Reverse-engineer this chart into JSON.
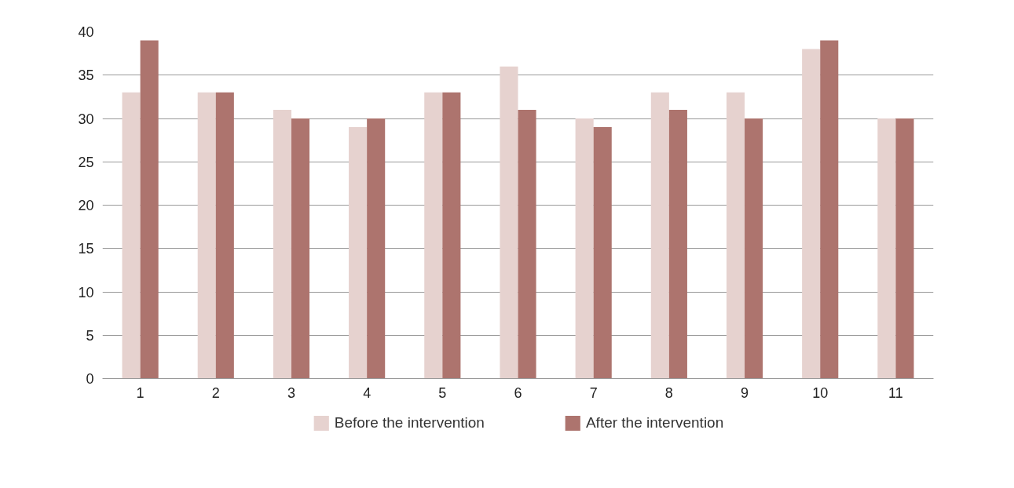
{
  "chart_data": {
    "type": "bar",
    "categories": [
      "1",
      "2",
      "3",
      "4",
      "5",
      "6",
      "7",
      "8",
      "9",
      "10",
      "11"
    ],
    "series": [
      {
        "name": "Before the intervention",
        "color": "#e6d2cf",
        "values": [
          33,
          33,
          31,
          29,
          33,
          36,
          30,
          33,
          33,
          38,
          30
        ]
      },
      {
        "name": "After the intervention",
        "color": "#ad746e",
        "values": [
          39,
          33,
          30,
          30,
          33,
          31,
          29,
          31,
          30,
          39,
          30
        ]
      }
    ],
    "ylim": [
      0,
      40
    ],
    "yticks": [
      0,
      5,
      10,
      15,
      20,
      25,
      30,
      35,
      40
    ],
    "grid": "y",
    "legend": "bottom"
  }
}
